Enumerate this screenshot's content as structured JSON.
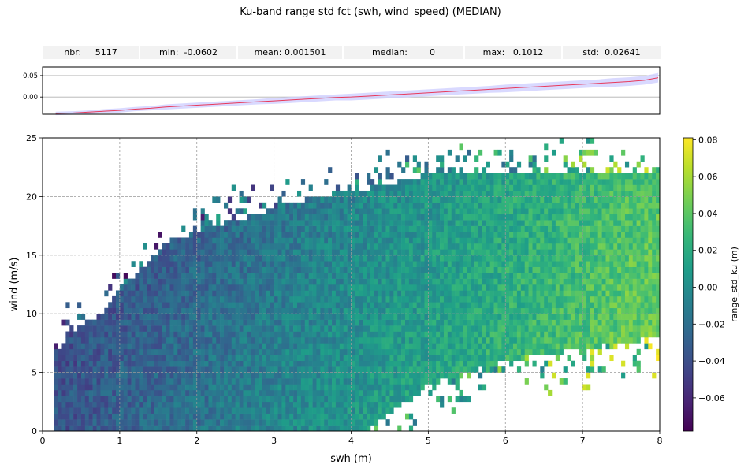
{
  "figure_title": "Ku-band range std fct (swh, wind_speed) (MEDIAN)",
  "stats": [
    {
      "label": "nbr:",
      "value": "5117"
    },
    {
      "label": "min:",
      "value": "-0.0602"
    },
    {
      "label": "mean:",
      "value": "0.001501"
    },
    {
      "label": "median:",
      "value": "0"
    },
    {
      "label": "max:",
      "value": "0.1012"
    },
    {
      "label": "std:",
      "value": "0.02641"
    }
  ],
  "chart_data": [
    {
      "type": "line",
      "title": "",
      "xlim": [
        0,
        8
      ],
      "ylim": [
        -0.04,
        0.07
      ],
      "yticks": [
        "0.05",
        "0.00"
      ],
      "ytick_values": [
        0.05,
        0.0
      ],
      "series": [
        {
          "color": "#e8395a",
          "band_color": "#d0d0ff",
          "x": [
            0.17,
            0.4,
            0.6,
            0.8,
            1.0,
            1.2,
            1.4,
            1.6,
            1.8,
            2.0,
            2.2,
            2.4,
            2.6,
            2.8,
            3.0,
            3.2,
            3.4,
            3.6,
            3.8,
            4.0,
            4.2,
            4.4,
            4.6,
            4.8,
            5.0,
            5.2,
            5.4,
            5.6,
            5.8,
            6.0,
            6.2,
            6.4,
            6.6,
            6.8,
            7.0,
            7.2,
            7.4,
            7.6,
            7.8,
            7.98
          ],
          "y": [
            -0.038,
            -0.037,
            -0.035,
            -0.033,
            -0.031,
            -0.028,
            -0.026,
            -0.023,
            -0.021,
            -0.019,
            -0.017,
            -0.015,
            -0.013,
            -0.011,
            -0.009,
            -0.007,
            -0.005,
            -0.003,
            -0.001,
            0.0,
            0.002,
            0.004,
            0.006,
            0.008,
            0.01,
            0.012,
            0.014,
            0.016,
            0.018,
            0.02,
            0.022,
            0.024,
            0.026,
            0.028,
            0.03,
            0.032,
            0.034,
            0.036,
            0.039,
            0.045
          ],
          "band": [
            0.004,
            0.004,
            0.004,
            0.005,
            0.005,
            0.005,
            0.005,
            0.006,
            0.006,
            0.006,
            0.006,
            0.006,
            0.006,
            0.006,
            0.007,
            0.007,
            0.007,
            0.007,
            0.007,
            0.008,
            0.008,
            0.008,
            0.008,
            0.008,
            0.008,
            0.008,
            0.008,
            0.008,
            0.008,
            0.009,
            0.009,
            0.009,
            0.009,
            0.009,
            0.009,
            0.009,
            0.01,
            0.01,
            0.01,
            0.011
          ]
        }
      ]
    },
    {
      "type": "heatmap",
      "title": "",
      "xlabel": "swh (m)",
      "ylabel": "wind (m/s)",
      "xlim": [
        0,
        8
      ],
      "ylim": [
        0,
        25
      ],
      "xticks": [
        0,
        1,
        2,
        3,
        4,
        5,
        6,
        7,
        8
      ],
      "yticks": [
        0,
        5,
        10,
        15,
        20,
        25
      ],
      "grid": true,
      "colormap": "viridis",
      "colorbar_label": "range_std_ku (m)",
      "colorbar_range": [
        -0.078,
        0.081
      ],
      "colorbar_ticks": [
        "0.08",
        "0.06",
        "0.04",
        "0.02",
        "0.00",
        "−0.02",
        "−0.04",
        "−0.06"
      ],
      "colorbar_tick_values": [
        0.08,
        0.06,
        0.04,
        0.02,
        0.0,
        -0.02,
        -0.04,
        -0.06
      ],
      "bin_size": {
        "x": 0.05,
        "y": 0.5
      },
      "coverage": {
        "x_min": 0.15,
        "wind_upper_edge": [
          [
            0.15,
            6
          ],
          [
            0.3,
            8
          ],
          [
            0.5,
            9
          ],
          [
            0.8,
            10
          ],
          [
            1.0,
            12
          ],
          [
            1.3,
            14
          ],
          [
            1.6,
            16
          ],
          [
            2.0,
            17
          ],
          [
            2.5,
            18
          ],
          [
            3.0,
            19
          ],
          [
            3.5,
            20
          ],
          [
            4.0,
            20.5
          ],
          [
            4.5,
            21
          ],
          [
            5.0,
            22
          ],
          [
            6.0,
            22
          ],
          [
            8.0,
            22
          ]
        ],
        "wind_lower_edge_from_swh": 4.2,
        "wind_lower_edge": [
          [
            4.2,
            0
          ],
          [
            5.0,
            4
          ],
          [
            6.0,
            6
          ],
          [
            7.0,
            7
          ],
          [
            8.0,
            8
          ]
        ]
      },
      "value_model": {
        "at_swh_0": -0.045,
        "at_swh_8": 0.045,
        "wind_effect": -0.0012
      }
    }
  ]
}
